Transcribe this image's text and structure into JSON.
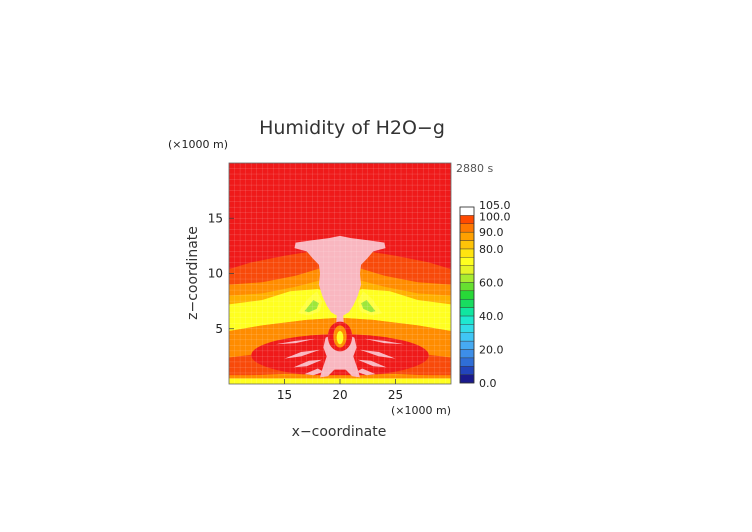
{
  "chart_data": {
    "type": "heatmap",
    "title": "Humidity of H2O−g",
    "time_label": "2880 s",
    "xlabel": "x−coordinate",
    "ylabel": "z−coordinate",
    "x_unit": "(×1000 m)",
    "y_unit": "(×1000 m)",
    "xlim": [
      10,
      30
    ],
    "ylim": [
      0,
      20
    ],
    "x_ticks": [
      "15",
      "20",
      "25"
    ],
    "y_ticks": [
      "5",
      "10",
      "15"
    ],
    "x_tick_values": [
      15,
      20,
      25
    ],
    "y_tick_values": [
      5,
      10,
      15
    ],
    "grid": true,
    "legend": "right",
    "colorbar": {
      "levels": [
        0,
        5,
        10,
        15,
        20,
        25,
        30,
        35,
        40,
        45,
        50,
        55,
        60,
        65,
        70,
        75,
        80,
        85,
        90,
        95,
        100,
        105
      ],
      "colors": [
        "#1a1a8c",
        "#2244bb",
        "#2f6ed6",
        "#3d8ee8",
        "#46aaf2",
        "#40c6f5",
        "#32dce8",
        "#1ee8d0",
        "#10e6a0",
        "#18dc60",
        "#28d838",
        "#66e030",
        "#a8ec30",
        "#e6f428",
        "#ffff20",
        "#ffe410",
        "#ffc408",
        "#ffa000",
        "#ff7800",
        "#ff4a00",
        "#f21c1c"
      ],
      "top_color": "#ffffff",
      "labels": [
        "0.0",
        "20.0",
        "40.0",
        "60.0",
        "80.0",
        "90.0",
        "100.0",
        "105.0"
      ],
      "label_values": [
        0,
        20,
        40,
        60,
        80,
        90,
        100,
        105
      ]
    },
    "field_colors": {
      "saturated": "#f9b7c0",
      "red": "#ef1a1a",
      "orange_red": "#f84a0a",
      "orange": "#ff8c00",
      "light_orange": "#ffb000",
      "yellow": "#ffff20",
      "green": "#9ce63a"
    }
  }
}
